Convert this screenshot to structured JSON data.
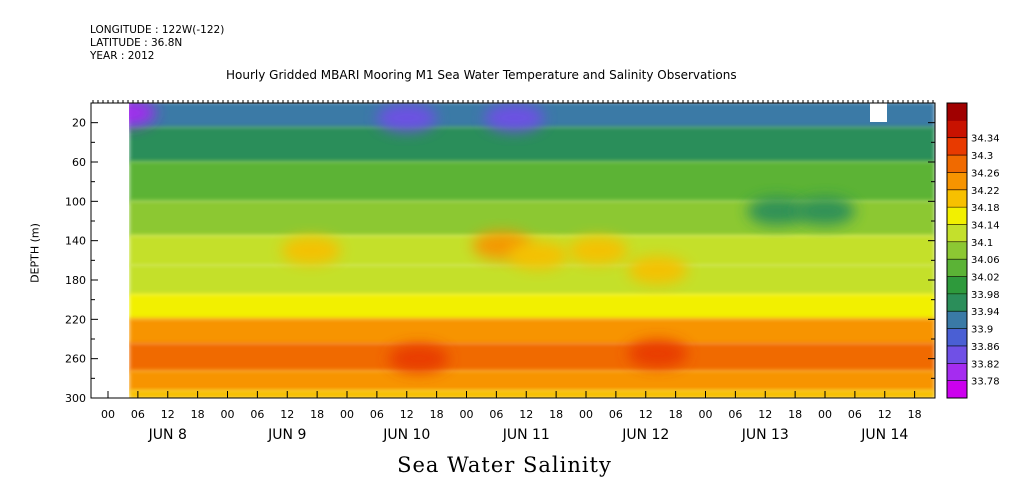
{
  "header": {
    "longitude": "LONGITUDE : 122W(-122)",
    "latitude": "LATITUDE : 36.8N",
    "year": "YEAR : 2012"
  },
  "chart_data": {
    "type": "heatmap",
    "title": "Hourly Gridded MBARI Mooring M1 Sea Water Temperature and Salinity Observations",
    "xlabel": "Sea Water Salinity",
    "ylabel": "DEPTH (m)",
    "y_ticks": [
      20,
      60,
      100,
      140,
      180,
      220,
      260,
      300
    ],
    "ylim": [
      300,
      0
    ],
    "x_hour_labels": [
      "00",
      "06",
      "12",
      "18",
      "00",
      "06",
      "12",
      "18",
      "00",
      "06",
      "12",
      "18",
      "00",
      "06",
      "12",
      "18",
      "00",
      "06",
      "12",
      "18",
      "00",
      "06",
      "12",
      "18",
      "00",
      "06",
      "12",
      "18"
    ],
    "x_day_labels": [
      "JUN  8",
      "JUN  9",
      "JUN 10",
      "JUN 11",
      "JUN 12",
      "JUN 13",
      "JUN 14"
    ],
    "colorbar": {
      "levels": [
        33.78,
        33.82,
        33.86,
        33.9,
        33.94,
        33.98,
        34.02,
        34.06,
        34.1,
        34.14,
        34.18,
        34.22,
        34.26,
        34.3,
        34.34
      ],
      "colors": [
        "#cc00ee",
        "#a52cf0",
        "#7050e6",
        "#4a5fd4",
        "#3a7aa6",
        "#2b8e5a",
        "#2e9a3c",
        "#5bb336",
        "#8cc833",
        "#c4e02c",
        "#f2f000",
        "#f7c000",
        "#f79400",
        "#f06a00",
        "#e83a00",
        "#c81200",
        "#a00000"
      ]
    },
    "depth_profile": [
      {
        "depth": 10,
        "value": 33.93
      },
      {
        "depth": 40,
        "value": 33.97
      },
      {
        "depth": 80,
        "value": 34.02
      },
      {
        "depth": 120,
        "value": 34.08
      },
      {
        "depth": 150,
        "value": 34.12
      },
      {
        "depth": 180,
        "value": 34.1
      },
      {
        "depth": 210,
        "value": 34.15
      },
      {
        "depth": 230,
        "value": 34.22
      },
      {
        "depth": 260,
        "value": 34.28
      },
      {
        "depth": 285,
        "value": 34.23
      },
      {
        "depth": 300,
        "value": 34.19
      }
    ],
    "features": [
      {
        "day": 0.15,
        "depth": 10,
        "value": 33.8
      },
      {
        "day": 2.5,
        "depth": 15,
        "value": 33.84
      },
      {
        "day": 3.4,
        "depth": 15,
        "value": 33.82
      },
      {
        "day": 1.7,
        "depth": 150,
        "value": 34.18
      },
      {
        "day": 3.3,
        "depth": 145,
        "value": 34.22
      },
      {
        "day": 3.6,
        "depth": 155,
        "value": 34.2
      },
      {
        "day": 4.1,
        "depth": 150,
        "value": 34.21
      },
      {
        "day": 4.6,
        "depth": 170,
        "value": 34.18
      },
      {
        "day": 2.6,
        "depth": 260,
        "value": 34.32
      },
      {
        "day": 4.6,
        "depth": 255,
        "value": 34.31
      },
      {
        "day": 5.6,
        "depth": 110,
        "value": 33.96
      },
      {
        "day": 6.0,
        "depth": 110,
        "value": 33.95
      }
    ]
  }
}
